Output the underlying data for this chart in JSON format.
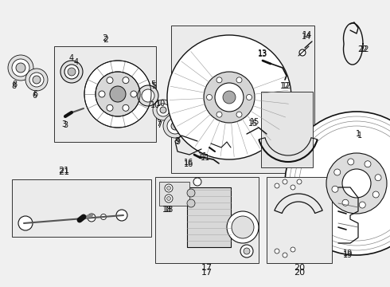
{
  "bg_color": "#f5f5f5",
  "box_fill": "#e8e8e8",
  "box_edge": "#333333",
  "line_color": "#111111",
  "label_color": "#111111",
  "fig_width": 4.9,
  "fig_height": 3.6,
  "dpi": 100
}
